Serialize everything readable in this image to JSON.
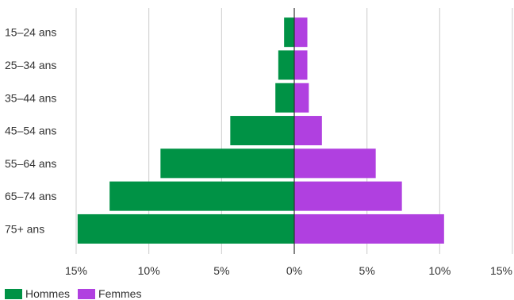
{
  "chart_data": {
    "type": "bar",
    "orientation": "horizontal",
    "categories": [
      "15–24 ans",
      "25–34 ans",
      "35–44 ans",
      "45–54 ans",
      "55–64 ans",
      "65–74 ans",
      "75+ ans"
    ],
    "series": [
      {
        "name": "Hommes",
        "values": [
          -0.7,
          -1.1,
          -1.3,
          -4.4,
          -9.2,
          -12.7,
          -14.9
        ],
        "color": "#009245"
      },
      {
        "name": "Femmes",
        "values": [
          0.9,
          0.9,
          1.0,
          1.9,
          5.6,
          7.4,
          10.3
        ],
        "color": "#b040e0"
      }
    ],
    "x_ticks": [
      -15,
      -10,
      -5,
      0,
      5,
      10,
      15
    ],
    "x_tick_labels": [
      "15%",
      "10%",
      "5%",
      "0%",
      "5%",
      "10%",
      "15%"
    ],
    "xlim": [
      -15,
      15
    ],
    "grid": true,
    "legend_position": "bottom-left",
    "title": "",
    "xlabel": "",
    "ylabel": ""
  }
}
